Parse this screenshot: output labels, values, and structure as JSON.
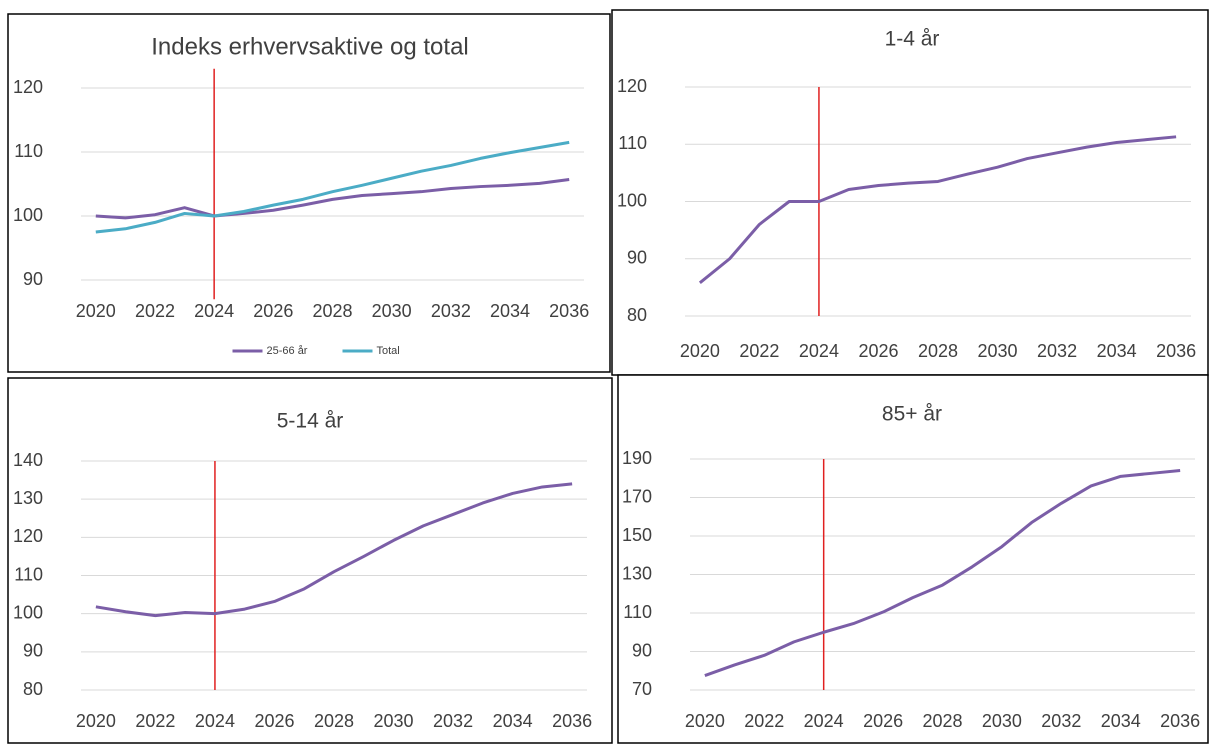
{
  "chart_data": [
    {
      "type": "line",
      "title": "Indeks erhvervsaktive og total",
      "x": [
        2020,
        2021,
        2022,
        2023,
        2024,
        2025,
        2026,
        2027,
        2028,
        2029,
        2030,
        2031,
        2032,
        2033,
        2034,
        2035,
        2036
      ],
      "series": [
        {
          "name": "25-66 år",
          "color": "#7b5ea7",
          "values": [
            100,
            99.7,
            100.2,
            101.3,
            100,
            100.4,
            100.9,
            101.7,
            102.6,
            103.2,
            103.5,
            103.8,
            104.3,
            104.6,
            104.8,
            105.1,
            105.7
          ]
        },
        {
          "name": "Total",
          "color": "#4bacc6",
          "values": [
            97.5,
            98.0,
            99.0,
            100.4,
            100,
            100.7,
            101.7,
            102.6,
            103.8,
            104.8,
            105.9,
            107.0,
            107.9,
            109.0,
            109.9,
            110.7,
            111.5
          ]
        }
      ],
      "xlim": [
        2019.5,
        2036.5
      ],
      "xticks": [
        2020,
        2022,
        2024,
        2026,
        2028,
        2030,
        2032,
        2034,
        2036
      ],
      "ylim": [
        87,
        123
      ],
      "yticks": [
        90,
        100,
        110,
        120
      ],
      "grid": true,
      "legend": "bottom",
      "vline": {
        "x": 2024,
        "color": "#e02020"
      }
    },
    {
      "type": "line",
      "title": "1-4 år",
      "x": [
        2020,
        2021,
        2022,
        2023,
        2024,
        2025,
        2026,
        2027,
        2028,
        2029,
        2030,
        2031,
        2032,
        2033,
        2034,
        2035,
        2036
      ],
      "series": [
        {
          "color": "#7b5ea7",
          "values": [
            85.8,
            90,
            96,
            100,
            100,
            102.1,
            102.8,
            103.2,
            103.5,
            104.8,
            106,
            107.5,
            108.5,
            109.5,
            110.3,
            110.8,
            111.3
          ]
        }
      ],
      "xlim": [
        2019.5,
        2036.5
      ],
      "xticks": [
        2020,
        2022,
        2024,
        2026,
        2028,
        2030,
        2032,
        2034,
        2036
      ],
      "ylim": [
        80,
        120
      ],
      "yticks": [
        80,
        90,
        100,
        110,
        120
      ],
      "grid": true,
      "vline": {
        "x": 2024,
        "color": "#e02020"
      }
    },
    {
      "type": "line",
      "title": "5-14 år",
      "x": [
        2020,
        2021,
        2022,
        2023,
        2024,
        2025,
        2026,
        2027,
        2028,
        2029,
        2030,
        2031,
        2032,
        2033,
        2034,
        2035,
        2036
      ],
      "series": [
        {
          "color": "#7b5ea7",
          "values": [
            101.8,
            100.5,
            99.5,
            100.3,
            100,
            101.2,
            103.2,
            106.5,
            111,
            115,
            119.2,
            123,
            126,
            129,
            131.5,
            133.2,
            134
          ]
        }
      ],
      "xlim": [
        2019.5,
        2036.5
      ],
      "xticks": [
        2020,
        2022,
        2024,
        2026,
        2028,
        2030,
        2032,
        2034,
        2036
      ],
      "ylim": [
        80,
        140
      ],
      "yticks": [
        80,
        90,
        100,
        110,
        120,
        130,
        140
      ],
      "grid": true,
      "vline": {
        "x": 2024,
        "color": "#e02020"
      }
    },
    {
      "type": "line",
      "title": "85+ år",
      "x": [
        2020,
        2021,
        2022,
        2023,
        2024,
        2025,
        2026,
        2027,
        2028,
        2029,
        2030,
        2031,
        2032,
        2033,
        2034,
        2035,
        2036
      ],
      "series": [
        {
          "color": "#7b5ea7",
          "values": [
            77.5,
            83,
            88,
            95,
            100,
            104.5,
            110.5,
            118,
            124.5,
            134,
            144.5,
            157,
            167,
            176,
            181,
            182.5,
            184
          ]
        }
      ],
      "xlim": [
        2019.5,
        2036.5
      ],
      "xticks": [
        2020,
        2022,
        2024,
        2026,
        2028,
        2030,
        2032,
        2034,
        2036
      ],
      "ylim": [
        70,
        190
      ],
      "yticks": [
        70,
        90,
        110,
        130,
        150,
        170,
        190
      ],
      "grid": true,
      "vline": {
        "x": 2024,
        "color": "#e02020"
      }
    }
  ]
}
